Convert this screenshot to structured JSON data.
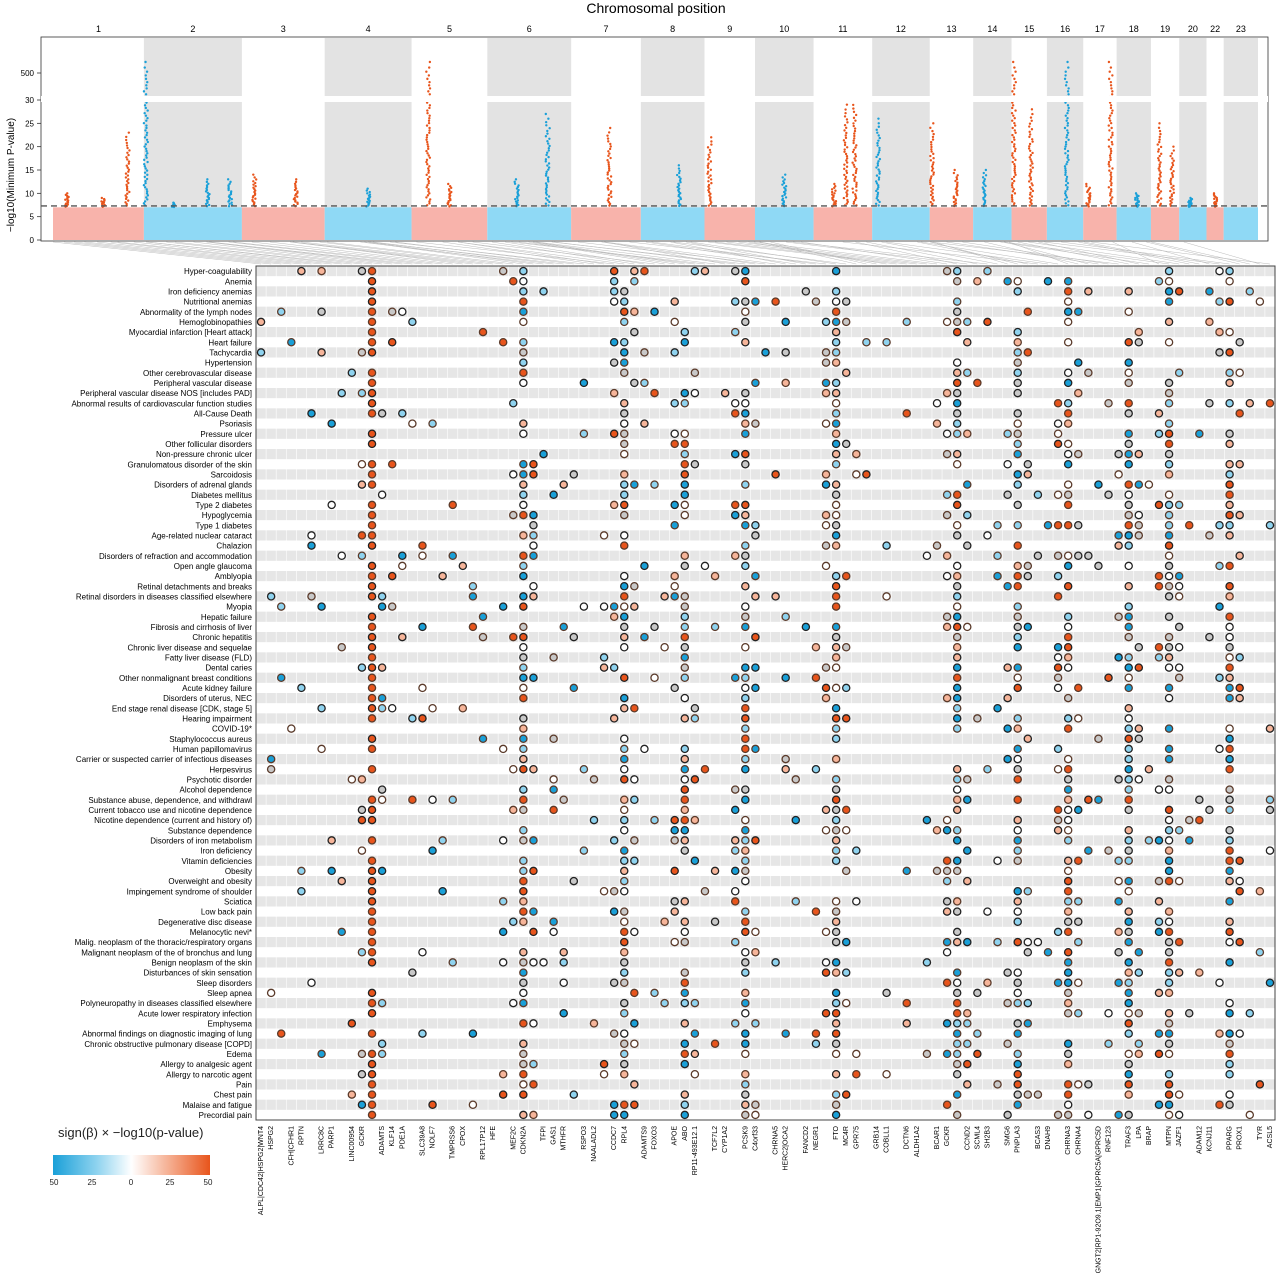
{
  "chart_data": [
    {
      "type": "scatter",
      "subtype": "manhattan",
      "title": "Chromosomal position",
      "ylabel": "−log10(Minimum P-value)",
      "y_ticks": [
        "0",
        "5",
        "10",
        "15",
        "20",
        "25",
        "30",
        "500"
      ],
      "chromosomes": [
        "1",
        "2",
        "3",
        "4",
        "5",
        "6",
        "7",
        "8",
        "9",
        "10",
        "11",
        "12",
        "13",
        "14",
        "15",
        "16",
        "17",
        "18",
        "19",
        "20",
        "22",
        "23"
      ],
      "significance_threshold": 7.3,
      "colors": {
        "odd_points": "#e8551c",
        "even_points": "#1aa0d8",
        "odd_band": "#f8b3ab",
        "even_band": "#8fd9f5",
        "grid_band": "#e3e3e3"
      },
      "peaks": [
        {
          "chr": "1",
          "pos": 0.15,
          "y": 10
        },
        {
          "chr": "1",
          "pos": 0.55,
          "y": 9
        },
        {
          "chr": "1",
          "pos": 0.82,
          "y": 23
        },
        {
          "chr": "2",
          "pos": 0.02,
          "y": 32
        },
        {
          "chr": "2",
          "pos": 0.3,
          "y": 8
        },
        {
          "chr": "2",
          "pos": 0.65,
          "y": 13
        },
        {
          "chr": "2",
          "pos": 0.88,
          "y": 13
        },
        {
          "chr": "3",
          "pos": 0.15,
          "y": 14
        },
        {
          "chr": "3",
          "pos": 0.65,
          "y": 13
        },
        {
          "chr": "4",
          "pos": 0.5,
          "y": 11
        },
        {
          "chr": "5",
          "pos": 0.22,
          "y": 32
        },
        {
          "chr": "5",
          "pos": 0.5,
          "y": 12
        },
        {
          "chr": "6",
          "pos": 0.35,
          "y": 13
        },
        {
          "chr": "6",
          "pos": 0.72,
          "y": 27
        },
        {
          "chr": "7",
          "pos": 0.55,
          "y": 24
        },
        {
          "chr": "8",
          "pos": 0.6,
          "y": 16
        },
        {
          "chr": "9",
          "pos": 0.1,
          "y": 22
        },
        {
          "chr": "10",
          "pos": 0.5,
          "y": 14
        },
        {
          "chr": "11",
          "pos": 0.35,
          "y": 12
        },
        {
          "chr": "11",
          "pos": 0.55,
          "y": 29
        },
        {
          "chr": "11",
          "pos": 0.7,
          "y": 30
        },
        {
          "chr": "12",
          "pos": 0.1,
          "y": 26
        },
        {
          "chr": "13",
          "pos": 0.05,
          "y": 25
        },
        {
          "chr": "13",
          "pos": 0.6,
          "y": 15
        },
        {
          "chr": "14",
          "pos": 0.3,
          "y": 15
        },
        {
          "chr": "15",
          "pos": 0.07,
          "y": 500
        },
        {
          "chr": "15",
          "pos": 0.55,
          "y": 28
        },
        {
          "chr": "16",
          "pos": 0.55,
          "y": 32
        },
        {
          "chr": "17",
          "pos": 0.15,
          "y": 12
        },
        {
          "chr": "17",
          "pos": 0.82,
          "y": 31
        },
        {
          "chr": "18",
          "pos": 0.6,
          "y": 10
        },
        {
          "chr": "19",
          "pos": 0.3,
          "y": 25
        },
        {
          "chr": "19",
          "pos": 0.75,
          "y": 20
        },
        {
          "chr": "20",
          "pos": 0.4,
          "y": 9
        },
        {
          "chr": "22",
          "pos": 0.5,
          "y": 10
        }
      ]
    },
    {
      "type": "heatmap",
      "subtype": "bubble-matrix",
      "legend": {
        "title": "sign(β) × −log10(p-value)",
        "ticks": [
          "50",
          "25",
          "0",
          "25",
          "50"
        ]
      },
      "rows": [
        "Hyper-coagulability",
        "Anemia",
        "Iron deficiency anemias",
        "Nutritional anemias",
        "Abnormality of the lymph nodes",
        "Hemoglobinopathies",
        "Myocardial infarction [Heart attack]",
        "Heart failure",
        "Tachycardia",
        "Hypertension",
        "Other cerebrovascular disease",
        "Peripheral vascular disease",
        "Peripheral vascular disease NOS [includes PAD]",
        "Abnormal results of cardiovascular function studies",
        "All-Cause Death",
        "Psoriasis",
        "Pressure ulcer",
        "Other follicular disorders",
        "Non-pressure chronic ulcer",
        "Granulomatous disorder of the skin",
        "Sarcoidosis",
        "Disorders of adrenal glands",
        "Diabetes mellitus",
        "Type 2 diabetes",
        "Hypoglycemia",
        "Type 1 diabetes",
        "Age-related nuclear cataract",
        "Chalazion",
        "Disorders of refraction and accommodation",
        "Open angle glaucoma",
        "Amblyopia",
        "Retinal detachments and breaks",
        "Retinal disorders in diseases classified elsewhere",
        "Myopia",
        "Hepatic failure",
        "Fibrosis and cirrhosis of liver",
        "Chronic hepatitis",
        "Chronic liver disease and sequelae",
        "Fatty liver disease (FLD)",
        "Dental caries",
        "Other nonmalignant breast conditions",
        "Acute kidney failure",
        "Disorders of uterus, NEC",
        "End stage renal disease [CDK, stage 5]",
        "Hearing impairment",
        "COVID-19*",
        "Staphylococcus aureus",
        "Human papillomavirus",
        "Carrier or suspected carrier of infectious diseases",
        "Herpesvirus",
        "Psychotic disorder",
        "Alcohol dependence",
        "Substance abuse, dependence, and withdrawl",
        "Current tobacco use and nicotine dependence",
        "Nicotine dependence (current and history of)",
        "Substance dependence",
        "Disorders of iron metabolism",
        "Iron deficiency",
        "Vitamin deficiencies",
        "Obesity",
        "Overweight and obesity",
        "Impingement syndrome of shoulder",
        "Sciatica",
        "Low back pain",
        "Degenerative disc disease",
        "Melanocytic nevi*",
        "Malig. neoplasm of the thoracic/respiratory organs",
        "Malignant neoplasm of the of bronchus and lung",
        "Benign neoplasm of the skin",
        "Disturbances of skin sensation",
        "Sleep disorders",
        "Sleep apnea",
        "Polyneuropathy in diseases classified elsewhere",
        "Acute lower respiratory infection",
        "Emphysema",
        "Abnormal findings on diagnostic imaging of lung",
        "Chronic obstructive pulmonary disease [COPD]",
        "Edema",
        "Allergy to analgesic agent",
        "Allergy to narcotic agent",
        "Pain",
        "Chest pain",
        "Malaise and fatigue",
        "Precordial pain"
      ],
      "column_labels_legible": [
        "ALPL|CDC42|HSPG2|WNT4",
        "HSPG2",
        "CFH|CFHR1",
        "RPTN",
        "LRRC8C",
        "PARP1",
        "LINC00954",
        "GCKR",
        "ADAMTS",
        "KLF14",
        "PDE1A",
        "SLC39A8",
        "NOLF7",
        "TMPRSS6",
        "CPOX",
        "RPL17P12",
        "HFE",
        "MEF2C",
        "CDKN2A",
        "TFPI",
        "GAS1",
        "MTHFR",
        "RSPO3",
        "NAALADL2",
        "CCDC7",
        "RPL4",
        "ADAMTS9",
        "FOXO3",
        "APOE",
        "ABO",
        "RP11-493E12.1",
        "TCF7L2",
        "CYP1A2",
        "PCSK9",
        "C4orf33",
        "CHRNA5",
        "HERC2|OCA2",
        "FANCD2",
        "NEGR1",
        "FTO",
        "MC4R",
        "GPR75",
        "GRB14",
        "COBLL1",
        "DCTN6",
        "ALDH1A2",
        "BCAR1",
        "GCKR",
        "CCND2",
        "SCML4",
        "SH2B3",
        "SMG6",
        "PNPLA3",
        "BCAS3",
        "DNAH9",
        "CHRNA3",
        "CHRNA4",
        "GNGT2|RP1-92O9.1|EMP1|GPRC5A|GPRC5D",
        "RNF123",
        "TRAF3",
        "LPA",
        "BRAP",
        "MTPN",
        "JAZF1",
        "ADAM12",
        "KCNJ11",
        "PPARG",
        "PROX1",
        "TYR",
        "ACSL5"
      ]
    }
  ]
}
